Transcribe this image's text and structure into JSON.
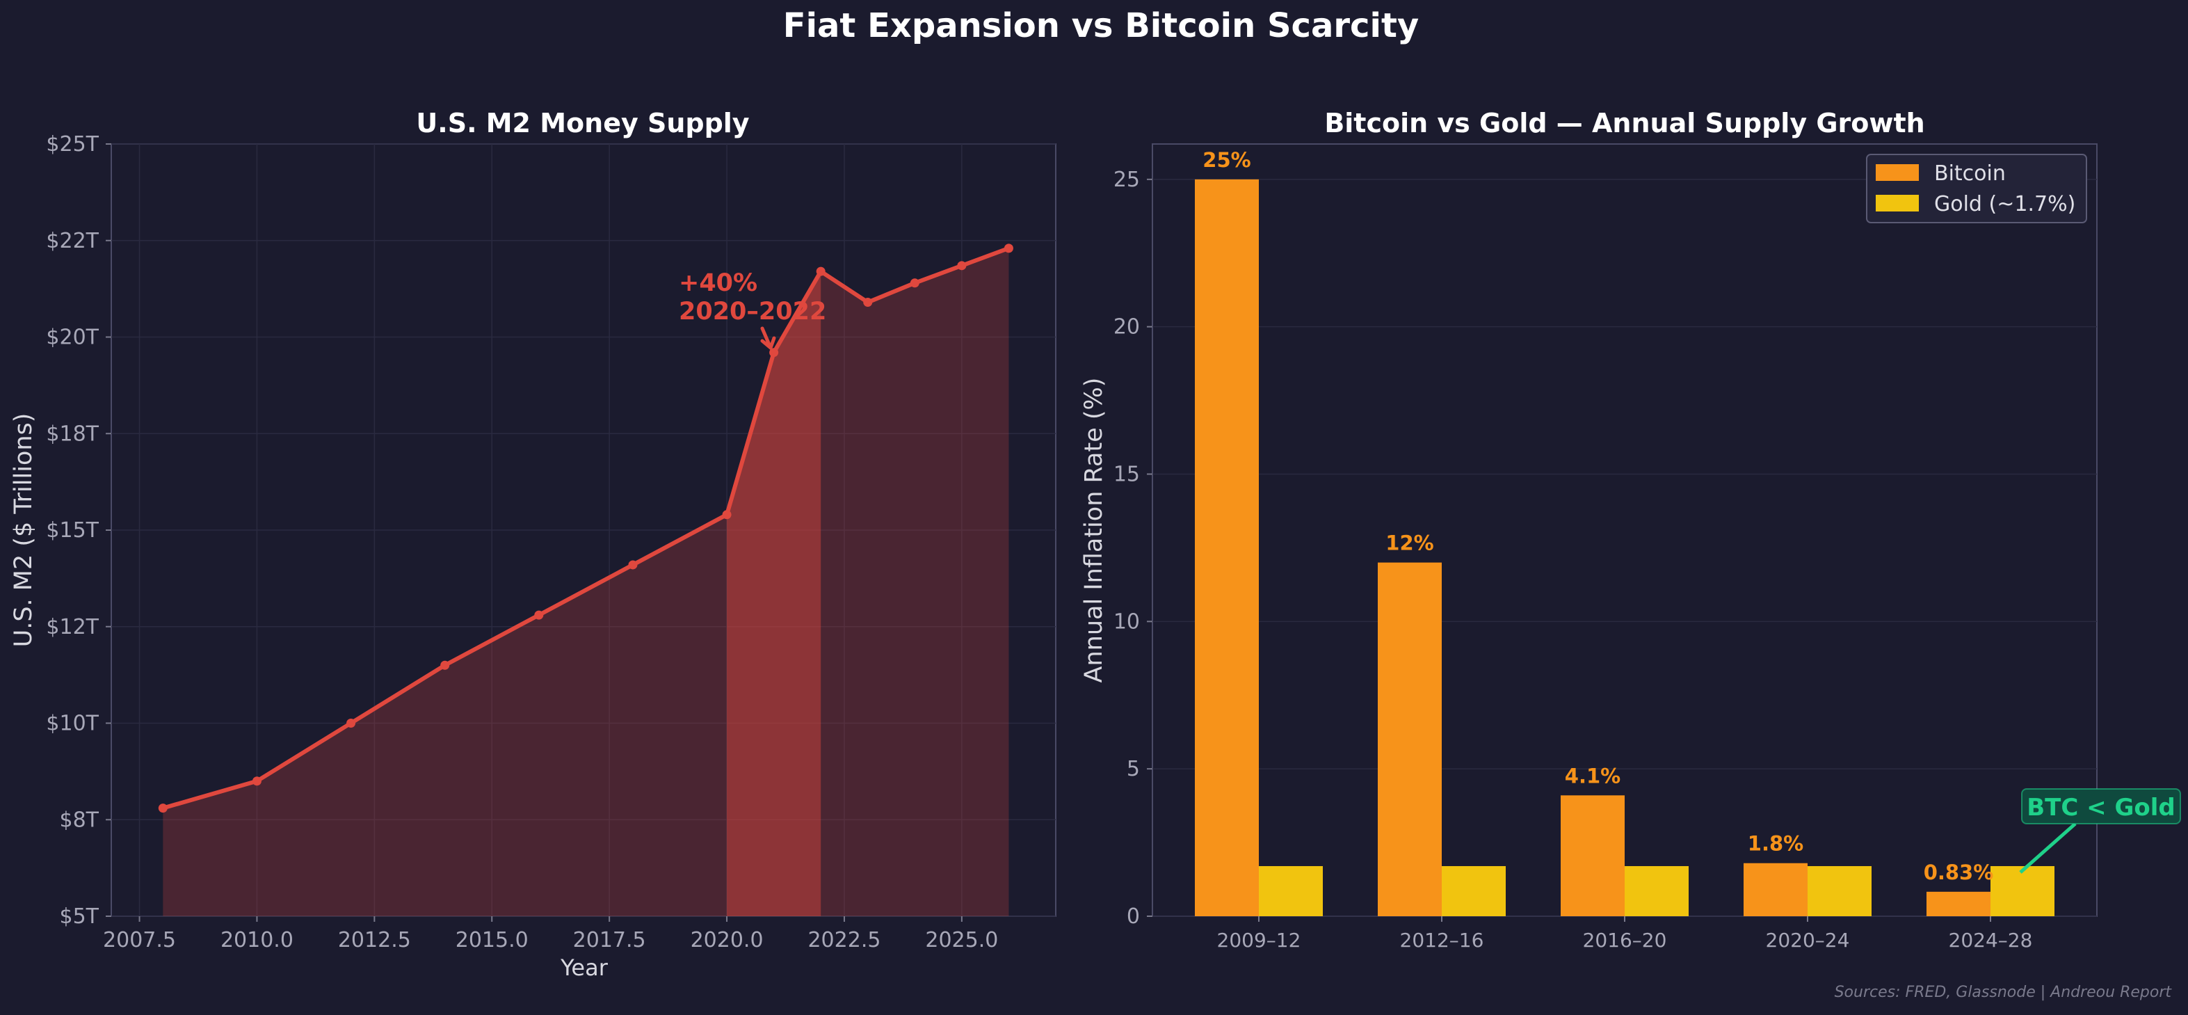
{
  "title": "Fiat Expansion vs Bitcoin Scarcity",
  "source_note": "Sources: FRED, Glassnode  |  Andreou Report",
  "colors": {
    "background": "#1b1b2e",
    "m2_line": "#e0483e",
    "bitcoin": "#f7931a",
    "gold": "#f1c40f",
    "btc_gold_annotation": "#1fd18a"
  },
  "chart_data": [
    {
      "type": "area",
      "title": "U.S. M2 Money Supply",
      "xlabel": "Year",
      "ylabel": "U.S. M2 ($ Trillions)",
      "xlim": [
        2006.9,
        2027.0
      ],
      "ylim": [
        5,
        25
      ],
      "xticks": [
        2007.5,
        2010.0,
        2012.5,
        2015.0,
        2017.5,
        2020.0,
        2022.5,
        2025.0
      ],
      "xtick_labels": [
        "2007.5",
        "2010.0",
        "2012.5",
        "2015.0",
        "2017.5",
        "2020.0",
        "2022.5",
        "2025.0"
      ],
      "yticks": [
        5,
        7.5,
        10,
        12.5,
        15,
        17.5,
        20,
        22.5,
        25
      ],
      "ytick_labels": [
        "$5T",
        "$8T",
        "$10T",
        "$12T",
        "$15T",
        "$18T",
        "$20T",
        "$22T",
        "$25T"
      ],
      "series": [
        {
          "x": [
            2008,
            2010,
            2012,
            2014,
            2016,
            2018,
            2020,
            2021,
            2022,
            2023,
            2024,
            2025,
            2026
          ],
          "y": [
            7.8,
            8.5,
            10.0,
            11.5,
            12.8,
            14.1,
            15.4,
            19.6,
            21.7,
            20.9,
            21.4,
            21.85,
            22.3
          ]
        }
      ],
      "highlight_range": [
        2020,
        2022
      ],
      "grid": true,
      "annotations": [
        {
          "text": [
            "+40%",
            "2020–2022"
          ],
          "x": 2021,
          "y": 19.6
        }
      ]
    },
    {
      "type": "bar",
      "title": "Bitcoin vs Gold — Annual Supply Growth",
      "xlabel": "",
      "ylabel": "Annual Inflation Rate (%)",
      "categories": [
        "2009–12",
        "2012–16",
        "2016–20",
        "2020–24",
        "2024–28"
      ],
      "ylim": [
        0,
        26.2
      ],
      "yticks": [
        0,
        5,
        10,
        15,
        20,
        25
      ],
      "series": [
        {
          "name": "Bitcoin",
          "values": [
            25,
            12,
            4.1,
            1.8,
            0.83
          ],
          "labels": [
            "25%",
            "12%",
            "4.1%",
            "1.8%",
            "0.83%"
          ]
        },
        {
          "name": "Gold (~1.7%)",
          "values": [
            1.7,
            1.7,
            1.7,
            1.7,
            1.7
          ]
        }
      ],
      "legend": "top-right",
      "grid": true,
      "annotations": [
        {
          "text": "BTC < Gold",
          "category": "2024–28"
        }
      ]
    }
  ]
}
